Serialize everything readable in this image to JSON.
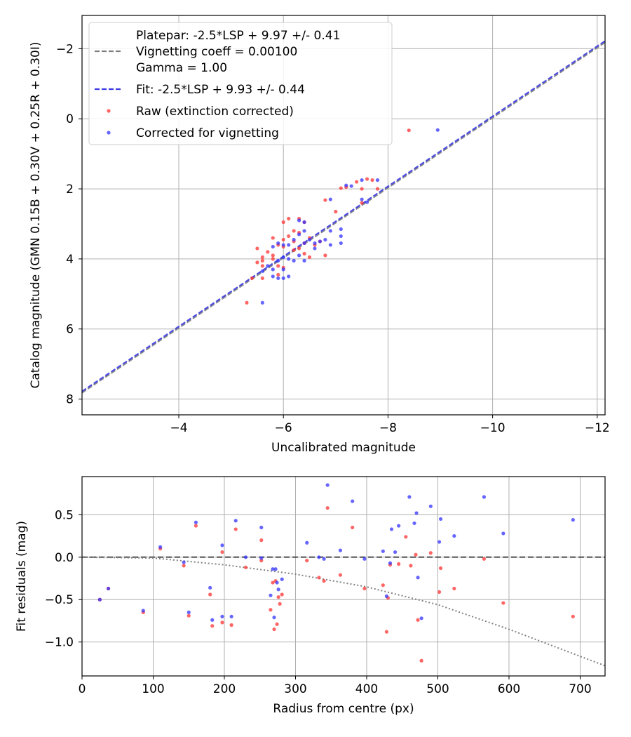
{
  "chart_data": [
    {
      "type": "scatter",
      "xlabel": "Uncalibrated magnitude",
      "ylabel": "Catalog magnitude (GMN 0.15B + 0.30V + 0.25R + 0.30I)",
      "xlim": [
        -2.15,
        -12.15
      ],
      "ylim": [
        8.45,
        -2.95
      ],
      "x_inverted": true,
      "y_inverted": true,
      "xticks": [
        -4,
        -6,
        -8,
        -10,
        -12
      ],
      "xtick_labels": [
        "−4",
        "−6",
        "−8",
        "−10",
        "−12"
      ],
      "yticks": [
        -2,
        0,
        2,
        4,
        6,
        8
      ],
      "ytick_labels": [
        "−2",
        "0",
        "2",
        "4",
        "6",
        "8"
      ],
      "grid": true,
      "legend_position": "top-left",
      "legend": [
        {
          "label_lines": [
            "Platepar: -2.5*LSP + 9.97 +/- 0.41",
            "Vignetting coeff = 0.00100",
            "Gamma = 1.00"
          ],
          "style": "dashed",
          "color": "#808080"
        },
        {
          "label_lines": [
            "Fit: -2.5*LSP + 9.93 +/- 0.44"
          ],
          "style": "dashed",
          "color": "#3a3ae0"
        },
        {
          "label_lines": [
            "Raw (extinction corrected)"
          ],
          "style": "marker",
          "color": "#ff3333"
        },
        {
          "label_lines": [
            "Corrected for vignetting"
          ],
          "style": "marker",
          "color": "#3333ff"
        }
      ],
      "lines": [
        {
          "name": "Platepar",
          "intercept": 9.97,
          "slope": 1,
          "color": "#808080"
        },
        {
          "name": "Fit",
          "intercept": 9.93,
          "slope": 1,
          "color": "#3a3ae0"
        }
      ],
      "series": [
        {
          "name": "Raw (extinction corrected)",
          "color": "#ff3333",
          "points": [
            [
              -8.4,
              0.33
            ],
            [
              -7.7,
              1.75
            ],
            [
              -7.6,
              1.72
            ],
            [
              -7.4,
              1.8
            ],
            [
              -7.2,
              1.95
            ],
            [
              -7.1,
              1.98
            ],
            [
              -7.8,
              2.0
            ],
            [
              -7.5,
              2.0
            ],
            [
              -6.8,
              2.32
            ],
            [
              -7.5,
              2.4
            ],
            [
              -7.0,
              2.65
            ],
            [
              -6.0,
              2.95
            ],
            [
              -6.1,
              2.85
            ],
            [
              -6.3,
              2.85
            ],
            [
              -6.4,
              2.95
            ],
            [
              -6.2,
              3.2
            ],
            [
              -6.3,
              3.25
            ],
            [
              -6.1,
              3.35
            ],
            [
              -5.8,
              3.4
            ],
            [
              -6.0,
              3.45
            ],
            [
              -6.5,
              3.4
            ],
            [
              -6.2,
              3.5
            ],
            [
              -6.4,
              3.55
            ],
            [
              -6.7,
              3.5
            ],
            [
              -5.9,
              3.6
            ],
            [
              -6.0,
              3.65
            ],
            [
              -6.3,
              3.7
            ],
            [
              -5.5,
              3.7
            ],
            [
              -6.6,
              3.6
            ],
            [
              -5.7,
              3.8
            ],
            [
              -6.2,
              3.75
            ],
            [
              -5.6,
              3.95
            ],
            [
              -5.8,
              3.9
            ],
            [
              -6.4,
              3.85
            ],
            [
              -6.8,
              3.9
            ],
            [
              -5.6,
              4.05
            ],
            [
              -5.8,
              4.0
            ],
            [
              -5.5,
              4.1
            ],
            [
              -5.9,
              4.2
            ],
            [
              -5.6,
              4.2
            ],
            [
              -6.0,
              4.25
            ],
            [
              -6.5,
              3.95
            ],
            [
              -5.9,
              4.45
            ],
            [
              -5.4,
              4.55
            ],
            [
              -5.6,
              4.55
            ],
            [
              -5.3,
              5.25
            ]
          ]
        },
        {
          "name": "Corrected for vignetting",
          "color": "#3333ff",
          "points": [
            [
              -8.95,
              0.32
            ],
            [
              -7.8,
              1.75
            ],
            [
              -7.5,
              1.75
            ],
            [
              -7.3,
              1.92
            ],
            [
              -7.2,
              1.9
            ],
            [
              -7.5,
              2.3
            ],
            [
              -7.6,
              2.38
            ],
            [
              -6.9,
              2.3
            ],
            [
              -7.1,
              3.15
            ],
            [
              -7.1,
              3.35
            ],
            [
              -7.1,
              3.55
            ],
            [
              -6.9,
              3.6
            ],
            [
              -6.9,
              3.2
            ],
            [
              -6.8,
              3.45
            ],
            [
              -6.7,
              3.5
            ],
            [
              -6.6,
              3.55
            ],
            [
              -6.6,
              3.7
            ],
            [
              -6.5,
              3.45
            ],
            [
              -6.4,
              3.55
            ],
            [
              -6.3,
              3.3
            ],
            [
              -6.4,
              3.2
            ],
            [
              -6.4,
              2.95
            ],
            [
              -6.3,
              2.9
            ],
            [
              -6.2,
              3.45
            ],
            [
              -6.1,
              3.6
            ],
            [
              -6.0,
              3.6
            ],
            [
              -5.9,
              3.55
            ],
            [
              -5.8,
              3.65
            ],
            [
              -6.3,
              3.9
            ],
            [
              -6.0,
              3.95
            ],
            [
              -6.1,
              4.0
            ],
            [
              -6.2,
              4.05
            ],
            [
              -6.4,
              4.05
            ],
            [
              -5.9,
              4.05
            ],
            [
              -6.0,
              4.3
            ],
            [
              -5.7,
              4.2
            ],
            [
              -5.8,
              4.3
            ],
            [
              -5.8,
              4.5
            ],
            [
              -5.9,
              4.55
            ],
            [
              -6.1,
              4.5
            ],
            [
              -6.0,
              4.55
            ],
            [
              -5.6,
              4.35
            ],
            [
              -5.6,
              5.25
            ]
          ]
        }
      ]
    },
    {
      "type": "scatter",
      "xlabel": "Radius from centre (px)",
      "ylabel": "Fit residuals (mag)",
      "xlim": [
        0,
        735
      ],
      "ylim": [
        -1.4,
        0.95
      ],
      "xticks": [
        0,
        100,
        200,
        300,
        400,
        500,
        600,
        700
      ],
      "xtick_labels": [
        "0",
        "100",
        "200",
        "300",
        "400",
        "500",
        "600",
        "700"
      ],
      "yticks": [
        0.5,
        0.0,
        -0.5,
        -1.0
      ],
      "ytick_labels": [
        "0.5",
        "0.0",
        "−0.5",
        "−1.0"
      ],
      "grid": true,
      "zero_line": {
        "y": 0,
        "style": "dashed",
        "color": "#505050"
      },
      "vignetting_curve": {
        "style": "dotted",
        "color": "#808080",
        "points": [
          [
            0,
            0.0
          ],
          [
            100,
            -0.01
          ],
          [
            200,
            -0.09
          ],
          [
            300,
            -0.2
          ],
          [
            400,
            -0.35
          ],
          [
            500,
            -0.56
          ],
          [
            600,
            -0.85
          ],
          [
            735,
            -1.28
          ]
        ]
      },
      "series": [
        {
          "name": "Raw (extinction corrected)",
          "color": "#ff3333",
          "points": [
            [
              25,
              -0.5
            ],
            [
              37,
              -0.37
            ],
            [
              86,
              -0.65
            ],
            [
              110,
              0.1
            ],
            [
              143,
              -0.1
            ],
            [
              150,
              -0.69
            ],
            [
              160,
              0.37
            ],
            [
              180,
              -0.44
            ],
            [
              183,
              -0.81
            ],
            [
              197,
              0.06
            ],
            [
              197,
              -0.77
            ],
            [
              210,
              -0.8
            ],
            [
              216,
              0.33
            ],
            [
              230,
              -0.12
            ],
            [
              252,
              0.2
            ],
            [
              252,
              -0.04
            ],
            [
              265,
              -0.62
            ],
            [
              268,
              -0.3
            ],
            [
              270,
              -0.85
            ],
            [
              272,
              -0.28
            ],
            [
              274,
              -0.79
            ],
            [
              276,
              -0.47
            ],
            [
              278,
              -0.55
            ],
            [
              281,
              -0.44
            ],
            [
              316,
              -0.04
            ],
            [
              333,
              -0.24
            ],
            [
              340,
              -0.28
            ],
            [
              345,
              0.58
            ],
            [
              363,
              -0.21
            ],
            [
              380,
              0.35
            ],
            [
              397,
              -0.37
            ],
            [
              423,
              -0.33
            ],
            [
              428,
              -0.88
            ],
            [
              430,
              -0.48
            ],
            [
              433,
              -0.09
            ],
            [
              445,
              -0.08
            ],
            [
              455,
              0.24
            ],
            [
              462,
              -0.1
            ],
            [
              469,
              0.03
            ],
            [
              472,
              -0.74
            ],
            [
              477,
              -1.22
            ],
            [
              490,
              0.05
            ],
            [
              502,
              -0.41
            ],
            [
              504,
              -0.13
            ],
            [
              523,
              -0.37
            ],
            [
              565,
              -0.02
            ],
            [
              592,
              -0.54
            ],
            [
              690,
              -0.7
            ]
          ]
        },
        {
          "name": "Corrected for vignetting",
          "color": "#3333ff",
          "points": [
            [
              25,
              -0.5
            ],
            [
              37,
              -0.37
            ],
            [
              86,
              -0.63
            ],
            [
              110,
              0.12
            ],
            [
              143,
              -0.06
            ],
            [
              150,
              -0.65
            ],
            [
              160,
              0.41
            ],
            [
              180,
              -0.36
            ],
            [
              183,
              -0.74
            ],
            [
              197,
              0.14
            ],
            [
              197,
              -0.7
            ],
            [
              210,
              -0.7
            ],
            [
              216,
              0.43
            ],
            [
              230,
              0.0
            ],
            [
              252,
              0.35
            ],
            [
              252,
              -0.01
            ],
            [
              265,
              -0.45
            ],
            [
              268,
              -0.14
            ],
            [
              270,
              -0.71
            ],
            [
              272,
              -0.14
            ],
            [
              274,
              -0.3
            ],
            [
              276,
              -0.38
            ],
            [
              281,
              -0.26
            ],
            [
              316,
              0.17
            ],
            [
              333,
              0.0
            ],
            [
              340,
              -0.02
            ],
            [
              345,
              0.85
            ],
            [
              363,
              0.08
            ],
            [
              380,
              0.66
            ],
            [
              397,
              -0.02
            ],
            [
              423,
              0.07
            ],
            [
              428,
              -0.46
            ],
            [
              433,
              -0.07
            ],
            [
              435,
              0.33
            ],
            [
              440,
              0.06
            ],
            [
              445,
              0.37
            ],
            [
              460,
              0.71
            ],
            [
              467,
              0.4
            ],
            [
              470,
              0.52
            ],
            [
              472,
              -0.24
            ],
            [
              477,
              -0.72
            ],
            [
              490,
              0.6
            ],
            [
              502,
              0.18
            ],
            [
              504,
              0.45
            ],
            [
              523,
              0.25
            ],
            [
              565,
              0.71
            ],
            [
              592,
              0.28
            ],
            [
              690,
              0.44
            ]
          ]
        }
      ]
    }
  ]
}
